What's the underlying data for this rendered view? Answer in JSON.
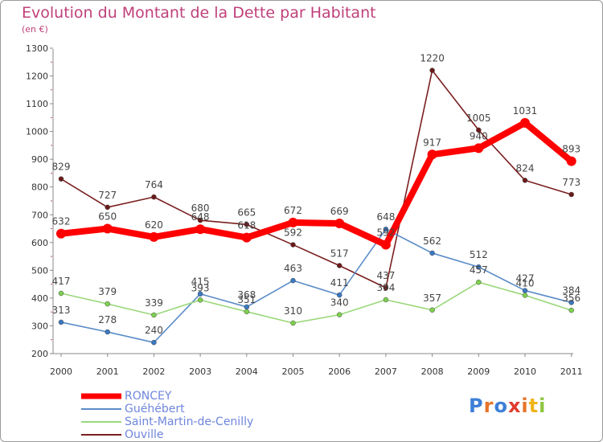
{
  "title": "Evolution du Montant de la Dette par Habitant",
  "unit": "(en €)",
  "brand": {
    "letters": [
      "P",
      "r",
      "o",
      "x",
      "i",
      "t",
      "i"
    ],
    "colors": [
      "#3d7fd6",
      "#e8732a",
      "#3d7fd6",
      "#e03b2f",
      "#e8732a",
      "#f0b418",
      "#8cc63f"
    ]
  },
  "chart_data": {
    "type": "line",
    "title": "Evolution du Montant de la Dette par Habitant",
    "ylabel": "(en €)",
    "xlabel": "",
    "x": [
      "2000",
      "2001",
      "2002",
      "2003",
      "2004",
      "2005",
      "2006",
      "2007",
      "2008",
      "2009",
      "2010",
      "2011"
    ],
    "ylim": [
      200,
      1300
    ],
    "yticks": [
      "200",
      "300",
      "400",
      "500",
      "600",
      "700",
      "800",
      "900",
      "1000",
      "1100",
      "1200",
      "1300"
    ],
    "grid": false,
    "legend_position": "bottom-left",
    "series": [
      {
        "name": "Ouville",
        "color": "#7a1f1f",
        "marker": "#6b1a1a",
        "values": [
          829,
          727,
          764,
          680,
          665,
          592,
          517,
          437,
          1220,
          1005,
          824,
          773
        ],
        "labels": [
          "829",
          "727",
          "764",
          "680",
          "665",
          "592",
          "517",
          "437",
          "1220",
          "1005",
          "824",
          "773"
        ]
      },
      {
        "name": "Guéhébert",
        "color": "#5b8cc8",
        "marker": "#3a78c2",
        "values": [
          313,
          278,
          240,
          415,
          368,
          463,
          411,
          648,
          562,
          512,
          427,
          384
        ],
        "labels": [
          "313",
          "278",
          "240",
          "415",
          "368",
          "463",
          "411",
          "648",
          "562",
          "512",
          "427",
          "384"
        ]
      },
      {
        "name": "Saint-Martin-de-Cenilly",
        "color": "#9ad87a",
        "marker": "#7ed04f",
        "values": [
          417,
          379,
          339,
          393,
          351,
          310,
          340,
          394,
          357,
          457,
          410,
          356
        ],
        "labels": [
          "417",
          "379",
          "339",
          "393",
          "351",
          "310",
          "340",
          "394",
          "357",
          "457",
          "410",
          "356"
        ]
      },
      {
        "name": "RONCEY",
        "color": "#ff0000",
        "marker": "#ff0000",
        "values": [
          632,
          650,
          620,
          648,
          618,
          672,
          669,
          592,
          917,
          940,
          1031,
          893
        ],
        "labels": [
          "632",
          "650",
          "620",
          "648",
          "618",
          "672",
          "669",
          "592",
          "917",
          "940",
          "1031",
          "893"
        ]
      }
    ],
    "legend": [
      {
        "name": "RONCEY",
        "color": "#ff0000"
      },
      {
        "name": "Guéhébert",
        "color": "#5b8cc8"
      },
      {
        "name": "Saint-Martin-de-Cenilly",
        "color": "#9ad87a"
      },
      {
        "name": "Ouville",
        "color": "#7a1f1f"
      }
    ]
  }
}
